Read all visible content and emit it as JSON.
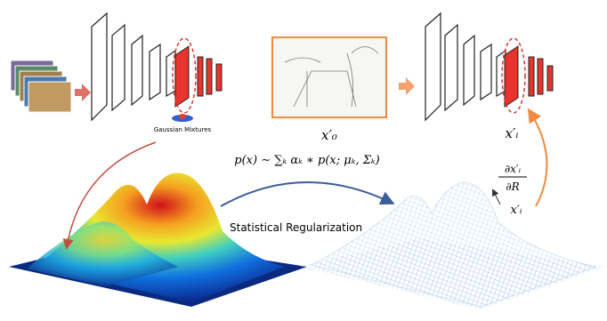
{
  "left_network": {
    "caption": "Gaussian Mixtures"
  },
  "sketch": {
    "label": "x′₀"
  },
  "right_network": {
    "label": "x′ᵢ"
  },
  "formula": "p(x) ∼ ∑ₖ αₖ ∗ p(x; μₖ, Σₖ)",
  "gradient": {
    "numerator": "∂x′ᵢ",
    "denominator": "∂R",
    "point": "x′ᵢ"
  },
  "arrow_label": "Statistical Regularization"
}
